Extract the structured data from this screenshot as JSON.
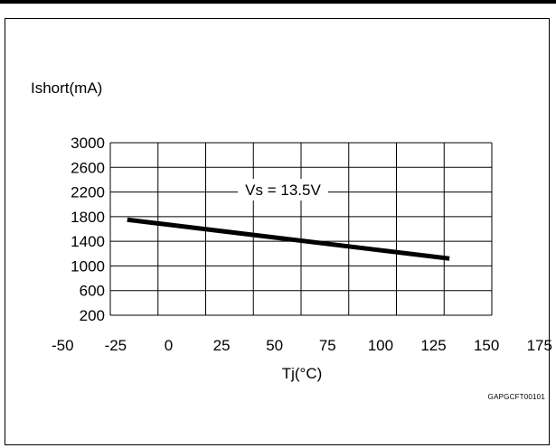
{
  "chart_data": {
    "type": "line",
    "ylabel": "Ishort(mA)",
    "xlabel": "Tj(°C)",
    "annotation": "Vs = 13.5V",
    "figure_code": "GAPGCFT00101",
    "x_ticks": [
      "-50",
      "-25",
      "0",
      "25",
      "50",
      "75",
      "100",
      "125",
      "150",
      "175"
    ],
    "y_ticks": [
      "3000",
      "2600",
      "2200",
      "1800",
      "1400",
      "1000",
      "600",
      "200"
    ],
    "xlim": [
      -50,
      175
    ],
    "ylim": [
      200,
      3000
    ],
    "grid": true,
    "series": [
      {
        "x": [
          -40,
          150
        ],
        "y": [
          1750,
          1120
        ]
      }
    ]
  }
}
